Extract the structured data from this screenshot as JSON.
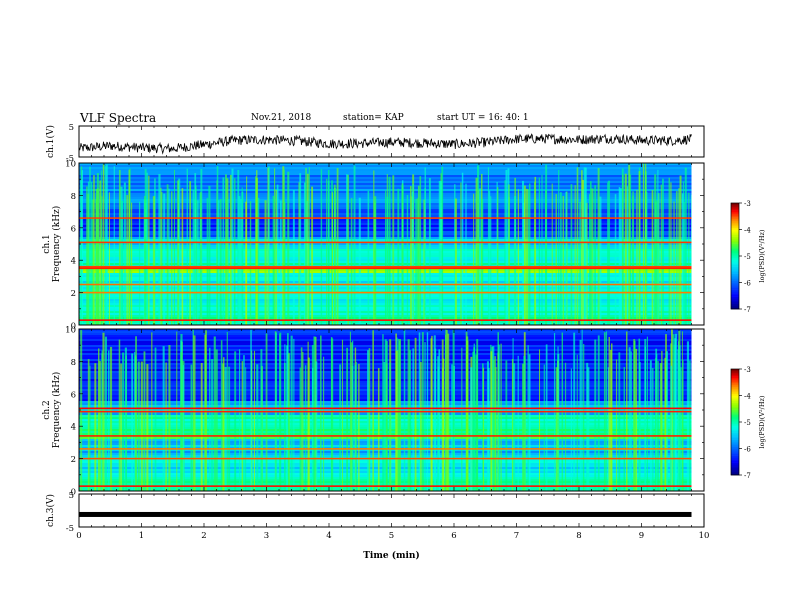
{
  "header": {
    "title": "VLF Spectra",
    "date": "Nov.21, 2018",
    "station": "station= KAP",
    "start_time": "start  UT =   16: 40: 1"
  },
  "colors": {
    "waveform": "#000000",
    "colormap": [
      "#00007f",
      "#0000ff",
      "#00bfff",
      "#00ffff",
      "#00ff7f",
      "#7fff00",
      "#ffff00",
      "#ff7f00",
      "#ff0000",
      "#7f0000",
      "#ffffff"
    ]
  },
  "chart_data": [
    {
      "type": "line",
      "id": "ch1-waveform",
      "ylabel": "ch.1(V)",
      "ylim": [
        -5,
        5
      ],
      "yticks": [
        "5",
        "-5"
      ],
      "xlim": [
        0,
        10
      ],
      "x_minutes": [
        0,
        0.5,
        1,
        1.5,
        2,
        2.5,
        3,
        3.5,
        4,
        4.5,
        5,
        5.5,
        6,
        6.5,
        7,
        7.5,
        8,
        8.5,
        9,
        9.5,
        9.8
      ],
      "y_volts": [
        -2.2,
        -1.4,
        -2.0,
        -2.3,
        -1.0,
        0.4,
        0.6,
        0.2,
        -0.7,
        -0.6,
        -0.2,
        -0.5,
        -0.9,
        -0.3,
        0.8,
        0.9,
        0.6,
        1.0,
        0.4,
        0.3,
        0.8
      ],
      "grid": false
    },
    {
      "type": "heatmap",
      "id": "ch1-spectrogram",
      "ylabel": "ch.1\nFrequency (kHz)",
      "ylim": [
        0,
        10
      ],
      "yticks": [
        "0",
        "2",
        "4",
        "6",
        "8",
        "10"
      ],
      "xlim": [
        0,
        10
      ],
      "data_end_min": 9.8,
      "colorbar": {
        "label": "log(PSD)(V²/Hz)",
        "range": [
          -7,
          -3
        ],
        "ticks": [
          "-3",
          "-4",
          "-5",
          "-6",
          "-7"
        ]
      },
      "bands_khz_logpsd": [
        {
          "from": 0.0,
          "to": 1.0,
          "value": -5.0
        },
        {
          "from": 1.0,
          "to": 2.3,
          "value": -5.2
        },
        {
          "from": 2.3,
          "to": 3.3,
          "value": -5.3
        },
        {
          "from": 3.3,
          "to": 3.7,
          "value": -4.4
        },
        {
          "from": 3.7,
          "to": 4.8,
          "value": -5.1
        },
        {
          "from": 4.8,
          "to": 5.5,
          "value": -5.5
        },
        {
          "from": 5.5,
          "to": 7.2,
          "value": -6.3
        },
        {
          "from": 7.2,
          "to": 10.0,
          "value": -5.9
        }
      ],
      "narrowband_lines_khz": [
        0.3,
        2.0,
        2.5,
        3.5,
        3.6,
        5.1,
        6.6
      ]
    },
    {
      "type": "heatmap",
      "id": "ch2-spectrogram",
      "ylabel": "ch.2\nFrequency (kHz)",
      "ylim": [
        0,
        10
      ],
      "yticks": [
        "0",
        "2",
        "4",
        "6",
        "8",
        "10"
      ],
      "xlim": [
        0,
        10
      ],
      "data_end_min": 9.8,
      "colorbar": {
        "label": "log(PSD)(V²/Hz)",
        "range": [
          -7,
          -3
        ],
        "ticks": [
          "-3",
          "-4",
          "-5",
          "-6",
          "-7"
        ]
      },
      "bands_khz_logpsd": [
        {
          "from": 0.0,
          "to": 1.0,
          "value": -5.1
        },
        {
          "from": 1.0,
          "to": 2.3,
          "value": -5.4
        },
        {
          "from": 2.3,
          "to": 3.3,
          "value": -5.6
        },
        {
          "from": 3.3,
          "to": 3.6,
          "value": -4.5
        },
        {
          "from": 3.6,
          "to": 4.8,
          "value": -5.0
        },
        {
          "from": 4.8,
          "to": 5.6,
          "value": -5.6
        },
        {
          "from": 5.6,
          "to": 10.0,
          "value": -6.4
        }
      ],
      "narrowband_lines_khz": [
        0.3,
        2.0,
        2.6,
        3.4,
        4.9,
        5.1
      ]
    },
    {
      "type": "line",
      "id": "ch3-waveform",
      "ylabel": "ch.3(V)",
      "ylim": [
        -5,
        5
      ],
      "yticks": [
        "5",
        "-5"
      ],
      "xlim": [
        0,
        10
      ],
      "x_minutes": [
        0,
        9.8
      ],
      "y_volts": [
        -1.2,
        -1.2
      ],
      "xlabel": "Time (min)",
      "xticks": [
        "0",
        "1",
        "2",
        "3",
        "4",
        "5",
        "6",
        "7",
        "8",
        "9",
        "10"
      ]
    }
  ]
}
